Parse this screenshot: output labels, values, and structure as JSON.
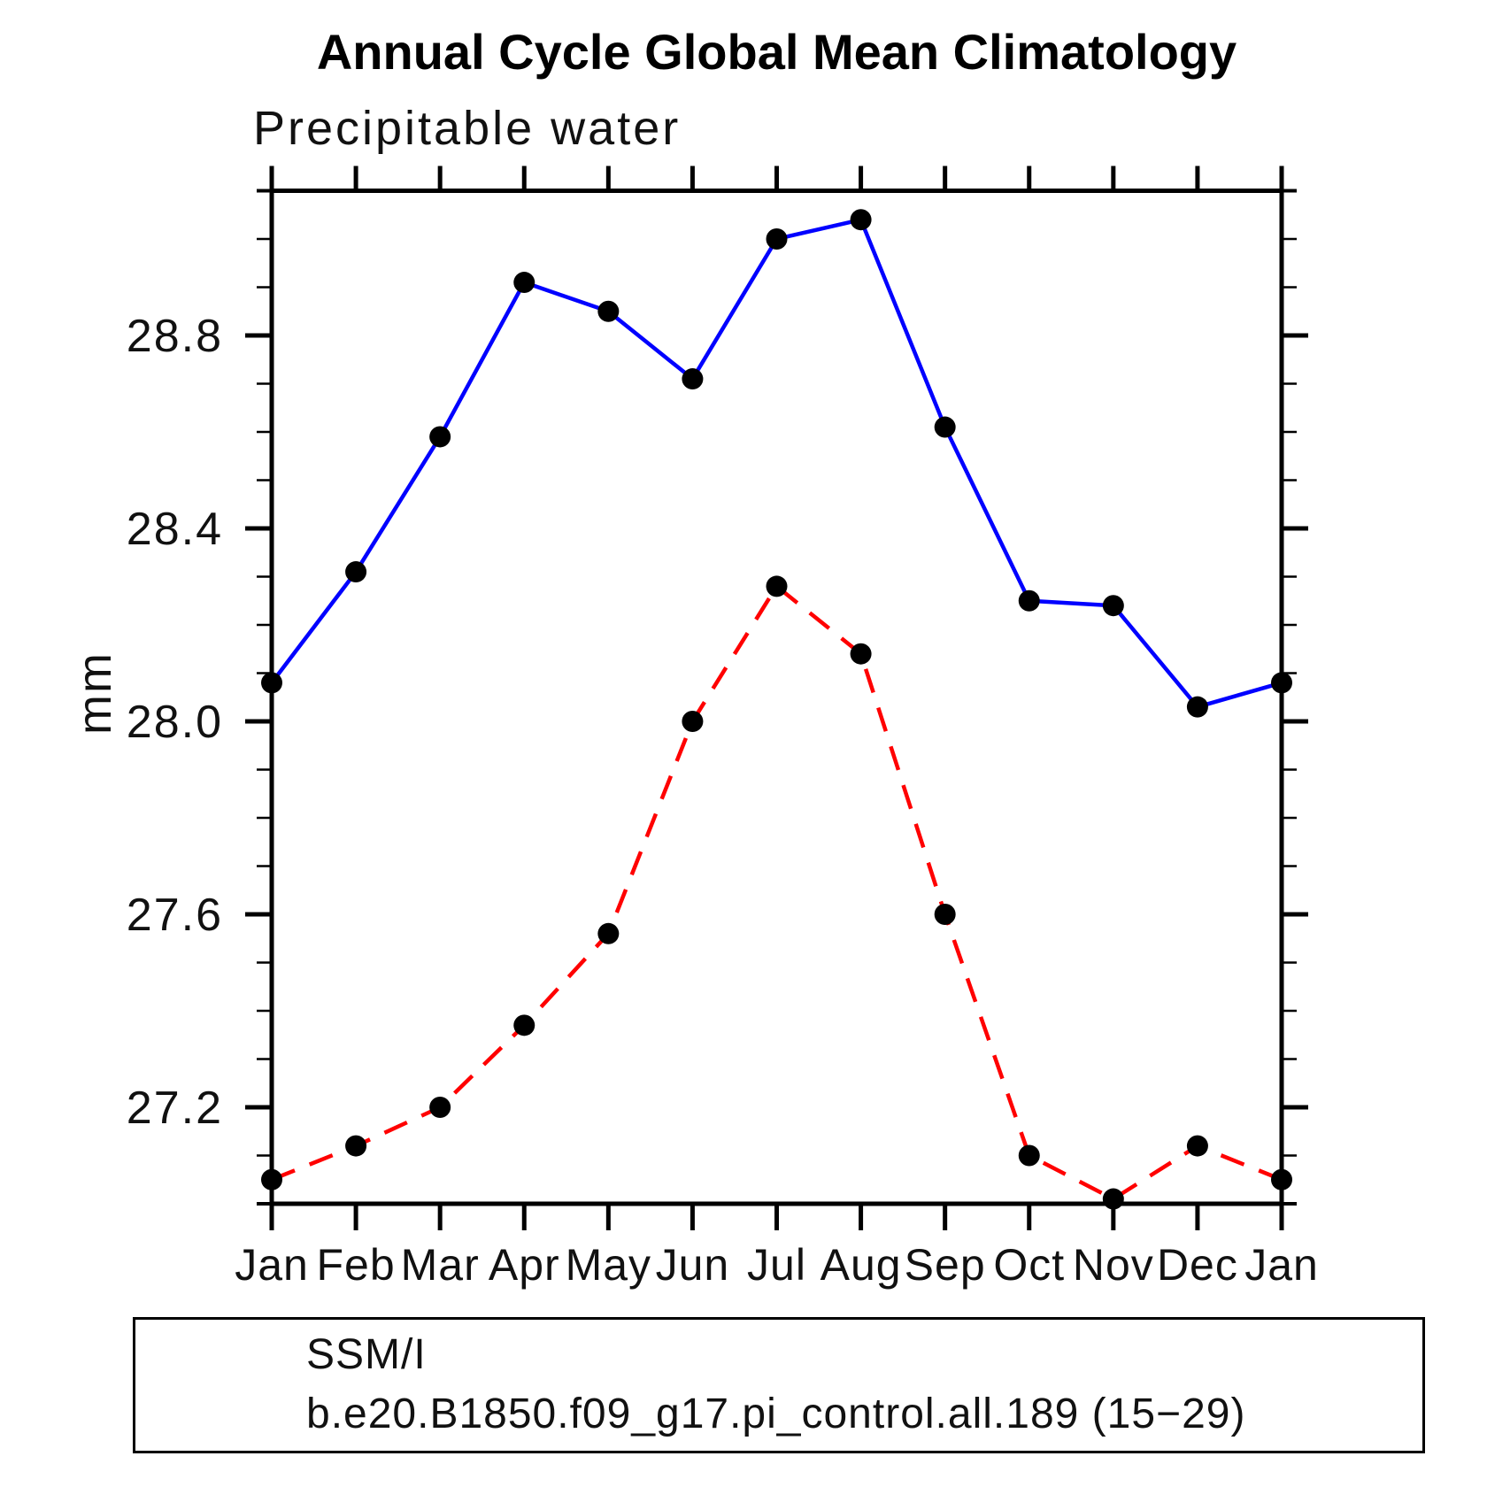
{
  "page": {
    "background": "#ffffff"
  },
  "chart_data": {
    "type": "line",
    "title": "Annual Cycle Global Mean Climatology",
    "subtitle": "Precipitable water",
    "ylabel": "mm",
    "xlabel": "",
    "categories": [
      "Jan",
      "Feb",
      "Mar",
      "Apr",
      "May",
      "Jun",
      "Jul",
      "Aug",
      "Sep",
      "Oct",
      "Nov",
      "Dec",
      "Jan"
    ],
    "ylim": [
      27.0,
      29.1
    ],
    "y_major_ticks": [
      27.2,
      27.6,
      28.0,
      28.4,
      28.8
    ],
    "y_minor_step": 0.1,
    "grid": false,
    "legend_position": "bottom",
    "frame_color": "#000000",
    "marker_color": "#000000",
    "series": [
      {
        "name": "SSM/I",
        "color": "#0000ff",
        "line_style": "solid",
        "marker": "filled-circle",
        "values": [
          28.08,
          28.31,
          28.59,
          28.91,
          28.85,
          28.71,
          29.0,
          29.04,
          28.61,
          28.25,
          28.24,
          28.03,
          28.08
        ]
      },
      {
        "name": "b.e20.B1850.f09_g17.pi_control.all.189 (15−29)",
        "color": "#ff0000",
        "line_style": "dashed",
        "marker": "filled-circle",
        "values": [
          27.05,
          27.12,
          27.2,
          27.37,
          27.56,
          28.0,
          28.28,
          28.14,
          27.6,
          27.1,
          27.01,
          27.12,
          27.05
        ]
      }
    ]
  }
}
